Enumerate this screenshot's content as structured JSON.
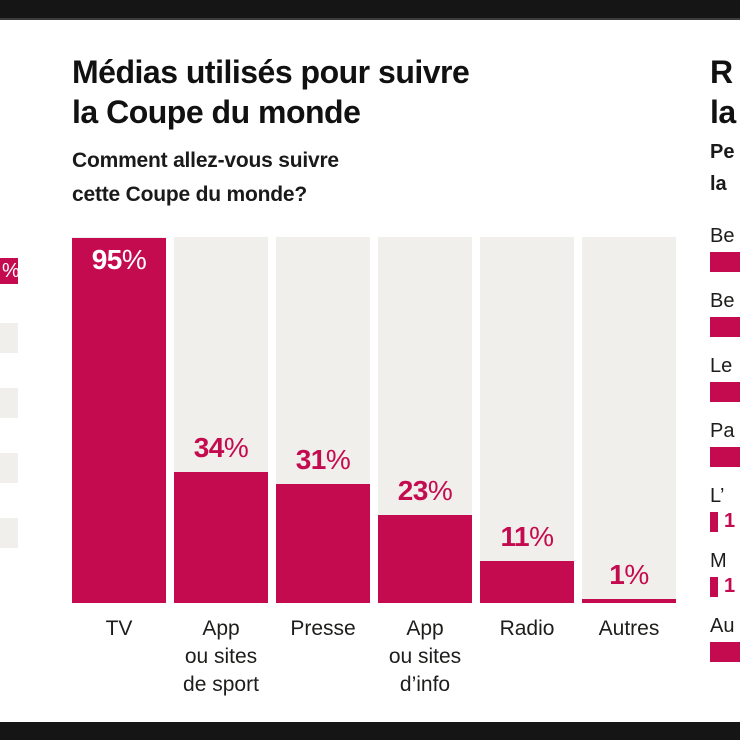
{
  "page": {
    "letterbox_color": "#151515",
    "background": "#ffffff"
  },
  "colors": {
    "accent_pink": "#c50b50",
    "track_grey": "#f1efeb",
    "text_dark": "#111111"
  },
  "main_chart": {
    "title": "Médias utilisés pour suivre\nla Coupe du monde",
    "subtitle": "Comment allez-vous suivre\ncette Coupe du monde?"
  },
  "chart_data": {
    "type": "bar",
    "title": "Médias utilisés pour suivre la Coupe du monde",
    "subtitle": "Comment allez-vous suivre cette Coupe du monde?",
    "categories": [
      "TV",
      "App\nou sites\nde sport",
      "Presse",
      "App\nou sites\nd’info",
      "Radio",
      "Autres"
    ],
    "values": [
      95,
      34,
      31,
      23,
      11,
      1
    ],
    "value_numbers": [
      "95",
      "34",
      "31",
      "23",
      "11",
      "1"
    ],
    "value_suffix": "%",
    "unit": "%",
    "ylim": [
      0,
      100
    ],
    "bar_color": "#c50b50",
    "track_color": "#f1efeb",
    "legend": "none",
    "grid": false
  },
  "right_panel": {
    "title_fragment": "R\nla",
    "subtitle_fragment": "Pe\nla",
    "items": [
      {
        "label_fragment": "Be",
        "value_fragment": ""
      },
      {
        "label_fragment": "Be",
        "value_fragment": ""
      },
      {
        "label_fragment": "Le",
        "value_fragment": ""
      },
      {
        "label_fragment": "Pa",
        "value_fragment": ""
      },
      {
        "label_fragment": "L’",
        "value_fragment": "1"
      },
      {
        "label_fragment": "M",
        "value_fragment": "1"
      },
      {
        "label_fragment": "Au",
        "value_fragment": ""
      }
    ]
  },
  "left_panel": {
    "bar_label_fragment": "%"
  }
}
